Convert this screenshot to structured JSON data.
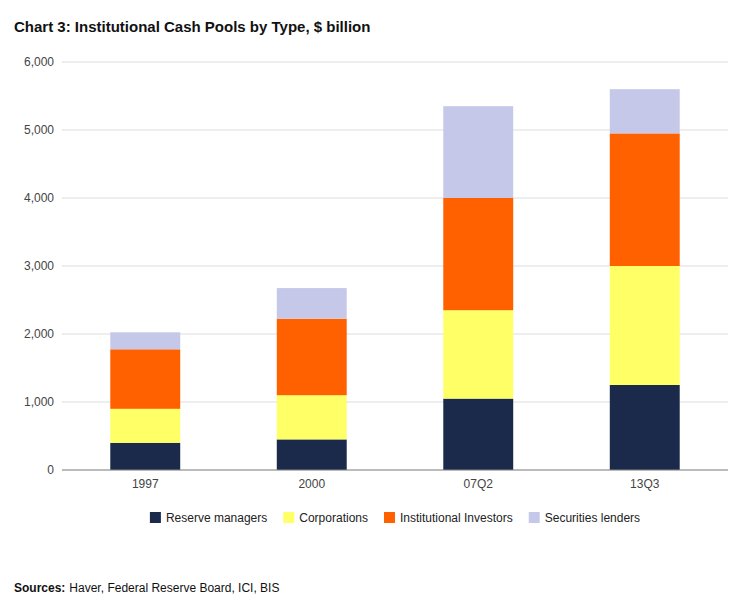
{
  "chart_data": {
    "type": "bar",
    "stacked": true,
    "title": "Chart 3: Institutional Cash Pools by Type, $ billion",
    "categories": [
      "1997",
      "2000",
      "07Q2",
      "13Q3"
    ],
    "series": [
      {
        "name": "Reserve managers",
        "color": "#1b2a4a",
        "values": [
          400,
          450,
          1050,
          1250
        ]
      },
      {
        "name": "Corporations",
        "color": "#ffff66",
        "values": [
          500,
          650,
          1300,
          1750
        ]
      },
      {
        "name": "Institutional Investors",
        "color": "#ff6000",
        "values": [
          875,
          1125,
          1650,
          1950
        ]
      },
      {
        "name": "Securities lenders",
        "color": "#c5c8e8",
        "values": [
          250,
          450,
          1350,
          650
        ]
      }
    ],
    "ylim": [
      0,
      6000
    ],
    "yticks": [
      0,
      {
        "value": 1000,
        "label": "1,000"
      },
      {
        "value": 2000,
        "label": "2,000"
      },
      {
        "value": 3000,
        "label": "3,000"
      },
      {
        "value": 4000,
        "label": "4,000"
      },
      {
        "value": 5000,
        "label": "5,000"
      },
      {
        "value": 6000,
        "label": "6,000"
      }
    ],
    "grid": true,
    "legend": "bottom",
    "annotations": [
      "Sources:",
      "Haver, Federal Reserve Board, ICI, BIS"
    ]
  }
}
